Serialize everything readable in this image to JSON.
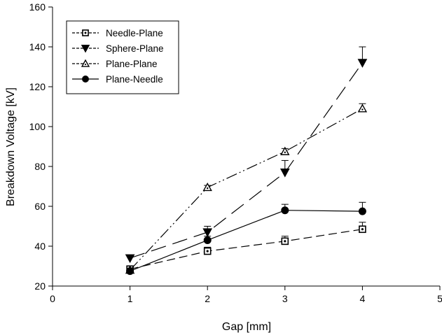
{
  "chart_data": {
    "type": "line",
    "title": "",
    "xlabel": "Gap [mm]",
    "ylabel": "Breakdown Voltage [kV]",
    "xlim": [
      0,
      5
    ],
    "ylim": [
      20,
      160
    ],
    "xticks": [
      0,
      1,
      2,
      3,
      4,
      5
    ],
    "yticks": [
      20,
      40,
      60,
      80,
      100,
      120,
      140,
      160
    ],
    "grid": false,
    "legend_position": "top-left",
    "series": [
      {
        "name": "Needle-Plane",
        "marker": "square-dot",
        "dash": "long-dash",
        "x": [
          1,
          2,
          3,
          4
        ],
        "y": [
          28.5,
          37.5,
          42.5,
          48.5
        ],
        "err": [
          1.5,
          2,
          2.5,
          3.5
        ]
      },
      {
        "name": "Sphere-Plane",
        "marker": "triangle-down-filled",
        "dash": "long-dash-wide",
        "x": [
          1,
          2,
          3,
          4
        ],
        "y": [
          34,
          47,
          77,
          132
        ],
        "err": [
          1,
          3,
          6,
          8
        ]
      },
      {
        "name": "Plane-Plane",
        "marker": "triangle-up-dot",
        "dash": "dash-dot-dot",
        "x": [
          1,
          2,
          3,
          4
        ],
        "y": [
          28,
          69.5,
          87.5,
          109
        ],
        "err": [
          1,
          1,
          1.5,
          2.5
        ]
      },
      {
        "name": "Plane-Needle",
        "marker": "circle-filled",
        "dash": "solid",
        "x": [
          1,
          2,
          3,
          4
        ],
        "y": [
          27.5,
          43,
          58,
          57.5
        ],
        "err": [
          1,
          2,
          3,
          4.5
        ]
      }
    ]
  }
}
